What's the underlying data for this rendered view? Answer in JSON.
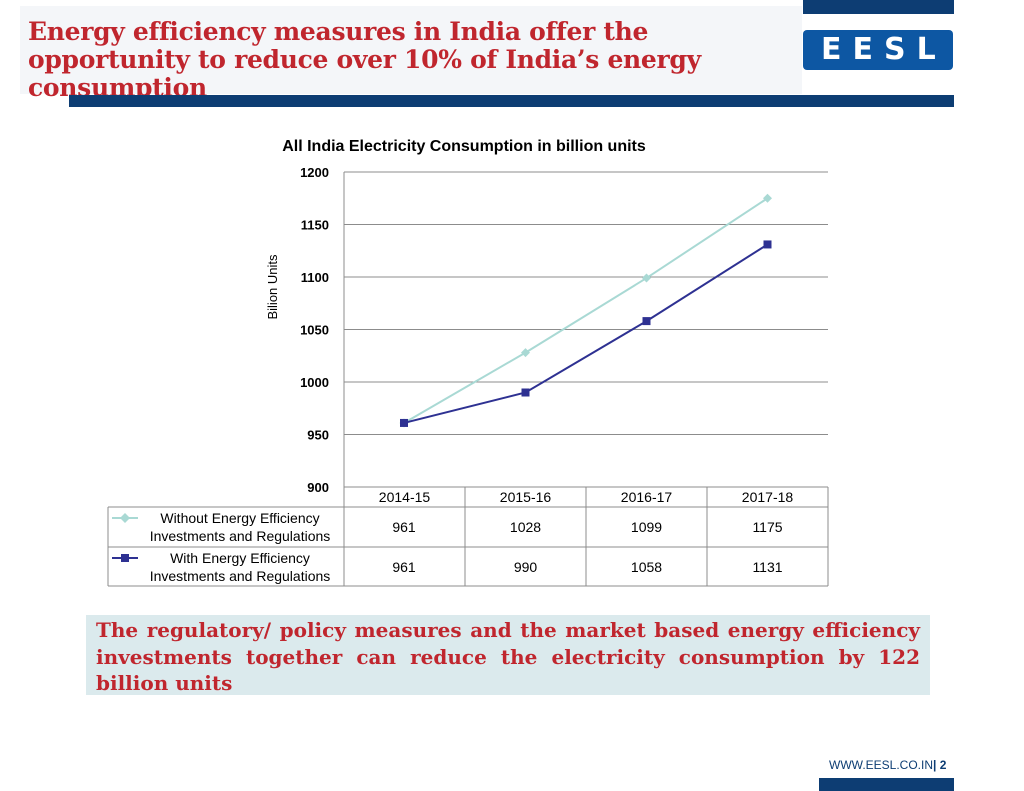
{
  "slide": {
    "title": "Energy efficiency measures in India offer the opportunity to reduce over 10% of India’s energy consumption",
    "logo_text": "EESL",
    "bottom_text": "The regulatory/ policy measures and the market based energy efficiency investments together can reduce the electricity consumption by 122 billion units",
    "footer_url": "WWW.EESL.CO.IN",
    "footer_sep": "|",
    "page_number": "2",
    "colors": {
      "title": "#c0262e",
      "navy": "#0d3d73",
      "note_bg": "#dbeaed"
    }
  },
  "chart_data": {
    "type": "line",
    "title": "All India Electricity Consumption in billion units",
    "ylabel": "Bilion Units",
    "xlabel": "",
    "categories": [
      "2014-15",
      "2015-16",
      "2016-17",
      "2017-18"
    ],
    "ylim": [
      900,
      1200
    ],
    "yticks": [
      "900",
      "950",
      "1000",
      "1050",
      "1100",
      "1150",
      "1200"
    ],
    "grid": true,
    "legend": "data-table",
    "series": [
      {
        "name": "Without Energy Efficiency Investments and Regulations",
        "values": [
          961,
          1028,
          1099,
          1175
        ],
        "color": "#a9d9d4",
        "marker": "diamond"
      },
      {
        "name": "With Energy Efficiency Investments and Regulations",
        "values": [
          961,
          990,
          1058,
          1131
        ],
        "color": "#2e3192",
        "marker": "square"
      }
    ]
  }
}
